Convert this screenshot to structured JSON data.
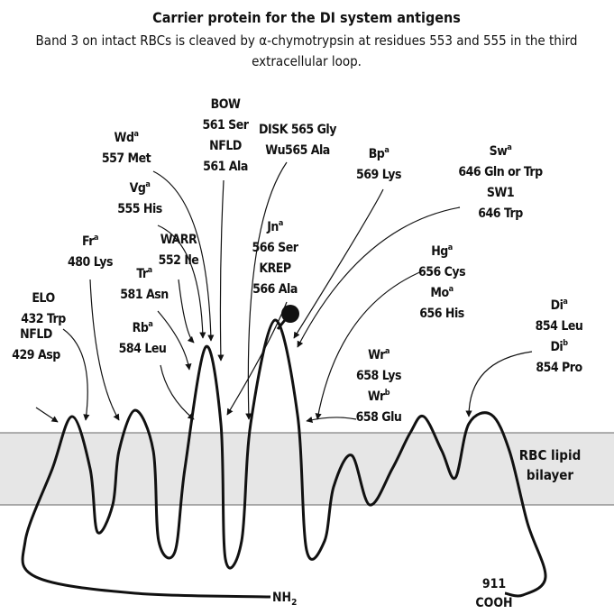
{
  "header": {
    "title": "Carrier protein for the DI system antigens",
    "subtitle_lines": [
      "Band 3 on intact RBCs is cleaved by α-chymotrypsin at residues 553 and 555 in the third",
      "extracellular loop."
    ]
  },
  "membrane_label": [
    "RBC lipid",
    "bilayer"
  ],
  "terminal_n": {
    "text": "NH",
    "sub": "2"
  },
  "terminal_c": [
    "911",
    "COOH"
  ],
  "annotations": [
    {
      "lines": [
        {
          "text": "NFLD"
        },
        {
          "text": "429 Asp"
        }
      ]
    },
    {
      "lines": [
        {
          "text": "ELO"
        },
        {
          "text": "432 Trp"
        }
      ]
    },
    {
      "lines": [
        {
          "text": "Fr",
          "sup": "a"
        },
        {
          "text": "480 Lys"
        }
      ]
    },
    {
      "lines": [
        {
          "text": "Tr",
          "sup": "a"
        },
        {
          "text": "581 Asn"
        }
      ]
    },
    {
      "lines": [
        {
          "text": "Rb",
          "sup": "a"
        },
        {
          "text": "584 Leu"
        }
      ]
    },
    {
      "lines": [
        {
          "text": "WARR"
        },
        {
          "text": "552 Ile"
        }
      ]
    },
    {
      "lines": [
        {
          "text": "Vg",
          "sup": "a"
        },
        {
          "text": "555 His"
        }
      ]
    },
    {
      "lines": [
        {
          "text": "Wd",
          "sup": "a"
        },
        {
          "text": "557 Met"
        }
      ]
    },
    {
      "lines": [
        {
          "text": "BOW"
        },
        {
          "text": "561 Ser"
        },
        {
          "text": "NFLD"
        },
        {
          "text": "561 Ala"
        }
      ]
    },
    {
      "lines": [
        {
          "text": "DISK 565 Gly"
        },
        {
          "text": "Wu565 Ala"
        }
      ]
    },
    {
      "lines": [
        {
          "text": "Jn",
          "sup": "a"
        },
        {
          "text": "566 Ser"
        },
        {
          "text": "KREP"
        },
        {
          "text": "566 Ala"
        }
      ]
    },
    {
      "lines": [
        {
          "text": "Bp",
          "sup": "a"
        },
        {
          "text": "569 Lys"
        }
      ]
    },
    {
      "lines": [
        {
          "text": "Sw",
          "sup": "a"
        },
        {
          "text": "646 Gln or Trp"
        },
        {
          "text": "SW1"
        },
        {
          "text": "646 Trp"
        }
      ]
    },
    {
      "lines": [
        {
          "text": "Hg",
          "sup": "a"
        },
        {
          "text": "656 Cys"
        },
        {
          "text": "Mo",
          "sup": "a"
        },
        {
          "text": "656 His"
        }
      ]
    },
    {
      "lines": [
        {
          "text": "Wr",
          "sup": "a"
        },
        {
          "text": "658 Lys"
        },
        {
          "text": "Wr",
          "sup": "b"
        },
        {
          "text": "658 Glu"
        }
      ]
    },
    {
      "lines": [
        {
          "text": "Di",
          "sup": "a"
        },
        {
          "text": "854 Leu"
        },
        {
          "text": "Di",
          "sup": "b"
        },
        {
          "text": "854 Pro"
        }
      ]
    }
  ]
}
